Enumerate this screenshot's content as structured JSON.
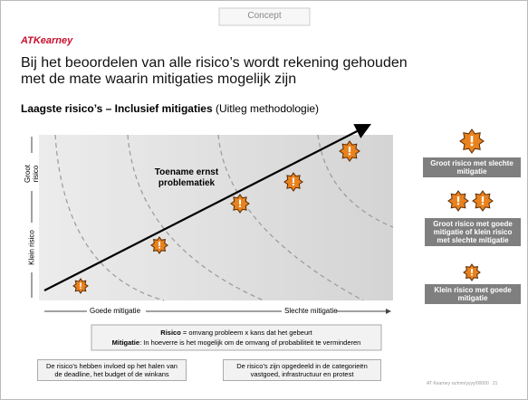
{
  "tab": "Concept",
  "logo": "ATKearney",
  "title": [
    "Bij het beoordelen van alle risico’s wordt rekening gehouden",
    "met de mate waarin mitigaties mogelijk zijn"
  ],
  "subtitle": {
    "bold": "Laagste risico’s – Inclusief mitigaties",
    "normal": " (Uitleg methodologie)"
  },
  "diagram": {
    "y_top": "Groot risico",
    "y_bottom": "Klein risico",
    "x_left": "Goede mitigatie",
    "x_right": "Slechte mitigatie",
    "arrow_label": [
      "Toename ernst",
      "problematiek"
    ]
  },
  "legend": [
    "Groot risico met slechte mitigatie",
    "Groot risico met goede mitigatie of klein risico met slechte mitigatie",
    "Klein risico met goede mitigatie"
  ],
  "definitions": [
    {
      "term": "Risico",
      "text": " = omvang probleem x kans dat het gebeurt"
    },
    {
      "term": "Mitigatie",
      "text": ": In hoeverre is het mogelijk om de omvang of probabiliteit te verminderen"
    }
  ],
  "notes": [
    "De risico’s hebben invloed op het halen van de deadline, het budget of de winkans",
    "De risico’s zijn opgedeeld in de categorieën vastgoed, infrastructuur en protest"
  ],
  "footer": "AT Kearney xx/mm/yyyy/00000   21"
}
